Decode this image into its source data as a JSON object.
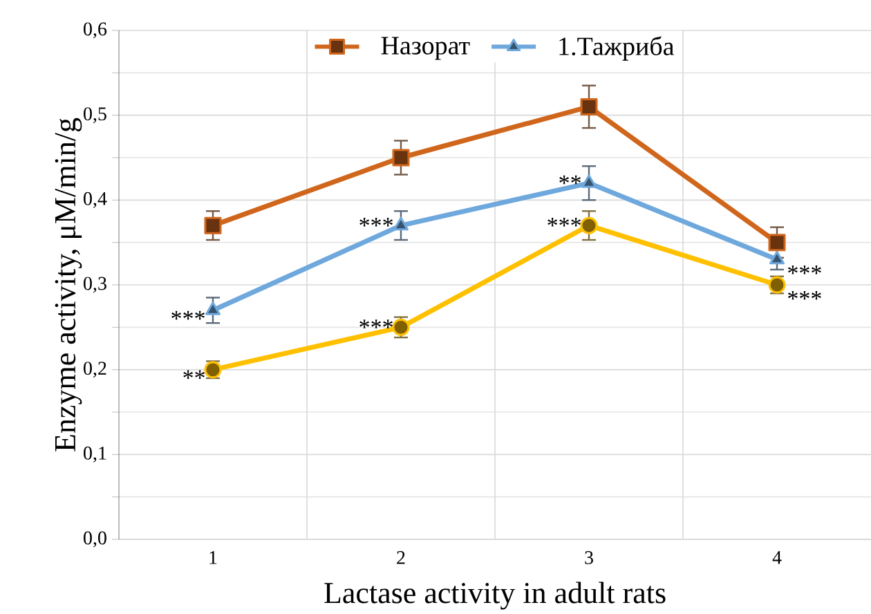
{
  "chart_data": {
    "type": "line",
    "xlabel": "Lactase activity  in adult rats",
    "ylabel": "Enzyme activity,  μM/min/g",
    "categories": [
      "1",
      "2",
      "3",
      "4"
    ],
    "series": [
      {
        "name": "Назорат",
        "color": "#d0661c",
        "values": [
          0.37,
          0.45,
          0.51,
          0.35
        ],
        "errors": [
          0.017,
          0.02,
          0.025,
          0.018
        ],
        "marker": "square"
      },
      {
        "name": "1.Тажриба",
        "color": "#6fa8dc",
        "values": [
          0.27,
          0.37,
          0.42,
          0.33
        ],
        "errors": [
          0.015,
          0.017,
          0.02,
          0.012
        ],
        "marker": "triangle"
      },
      {
        "color": "#ffc000",
        "values": [
          0.2,
          0.25,
          0.37,
          0.3
        ],
        "errors": [
          0.01,
          0.012,
          0.017,
          0.01
        ],
        "marker": "circle"
      }
    ],
    "ylim": [
      0,
      0.6
    ],
    "yticks": [
      {
        "value": 0,
        "label": "0,0"
      },
      {
        "value": 0.1,
        "label": "0,1"
      },
      {
        "value": 0.2,
        "label": "0,2"
      },
      {
        "value": 0.3,
        "label": "0,3"
      },
      {
        "value": 0.4,
        "label": "0,4"
      },
      {
        "value": 0.5,
        "label": "0,5"
      },
      {
        "value": 0.6,
        "label": "0,6"
      }
    ],
    "grid": true,
    "legend": "top",
    "line_style": "solid",
    "annotations": [
      {
        "text": "***",
        "x": "1",
        "y": 0.27
      },
      {
        "text": "**",
        "x": "1",
        "y": 0.2
      },
      {
        "text": "***",
        "x": "2",
        "y": 0.37
      },
      {
        "text": "***",
        "x": "2",
        "y": 0.25
      },
      {
        "text": "**",
        "x": "3",
        "y": 0.42
      },
      {
        "text": "***",
        "x": "3",
        "y": 0.37
      },
      {
        "text": "***",
        "x": "4",
        "y": 0.33
      },
      {
        "text": "***",
        "x": "4",
        "y": 0.3
      }
    ]
  }
}
